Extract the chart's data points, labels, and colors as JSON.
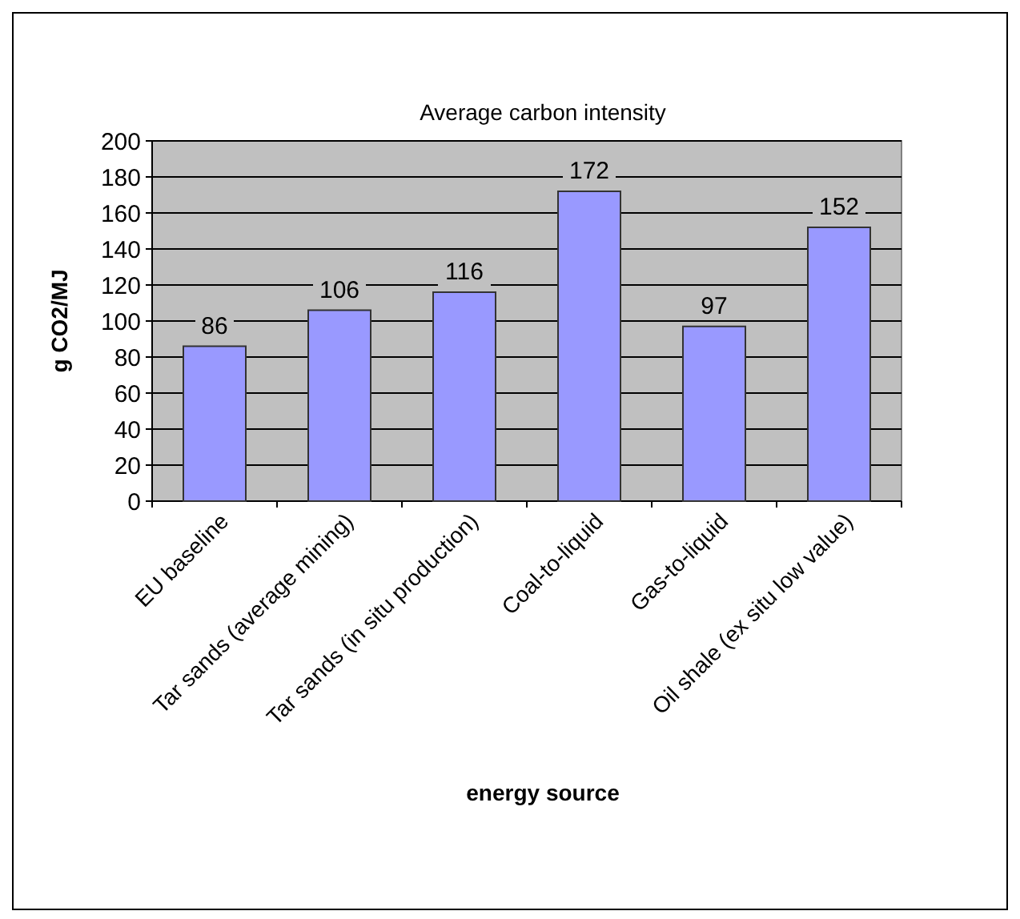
{
  "chart_data": {
    "type": "bar",
    "title": "Average carbon intensity",
    "xlabel": "energy source",
    "ylabel": "g CO2/MJ",
    "categories": [
      "EU baseline",
      "Tar sands (average mining)",
      "Tar sands (in situ production)",
      "Coal-to-liquid",
      "Gas-to-liquid",
      "Oil shale (ex situ low value)"
    ],
    "values": [
      86,
      106,
      116,
      172,
      97,
      152
    ],
    "color": "#9999ff",
    "ylim": [
      0,
      200
    ],
    "yticks": [
      0,
      20,
      40,
      60,
      80,
      100,
      120,
      140,
      160,
      180,
      200
    ],
    "grid": "y",
    "data_labels": true
  }
}
